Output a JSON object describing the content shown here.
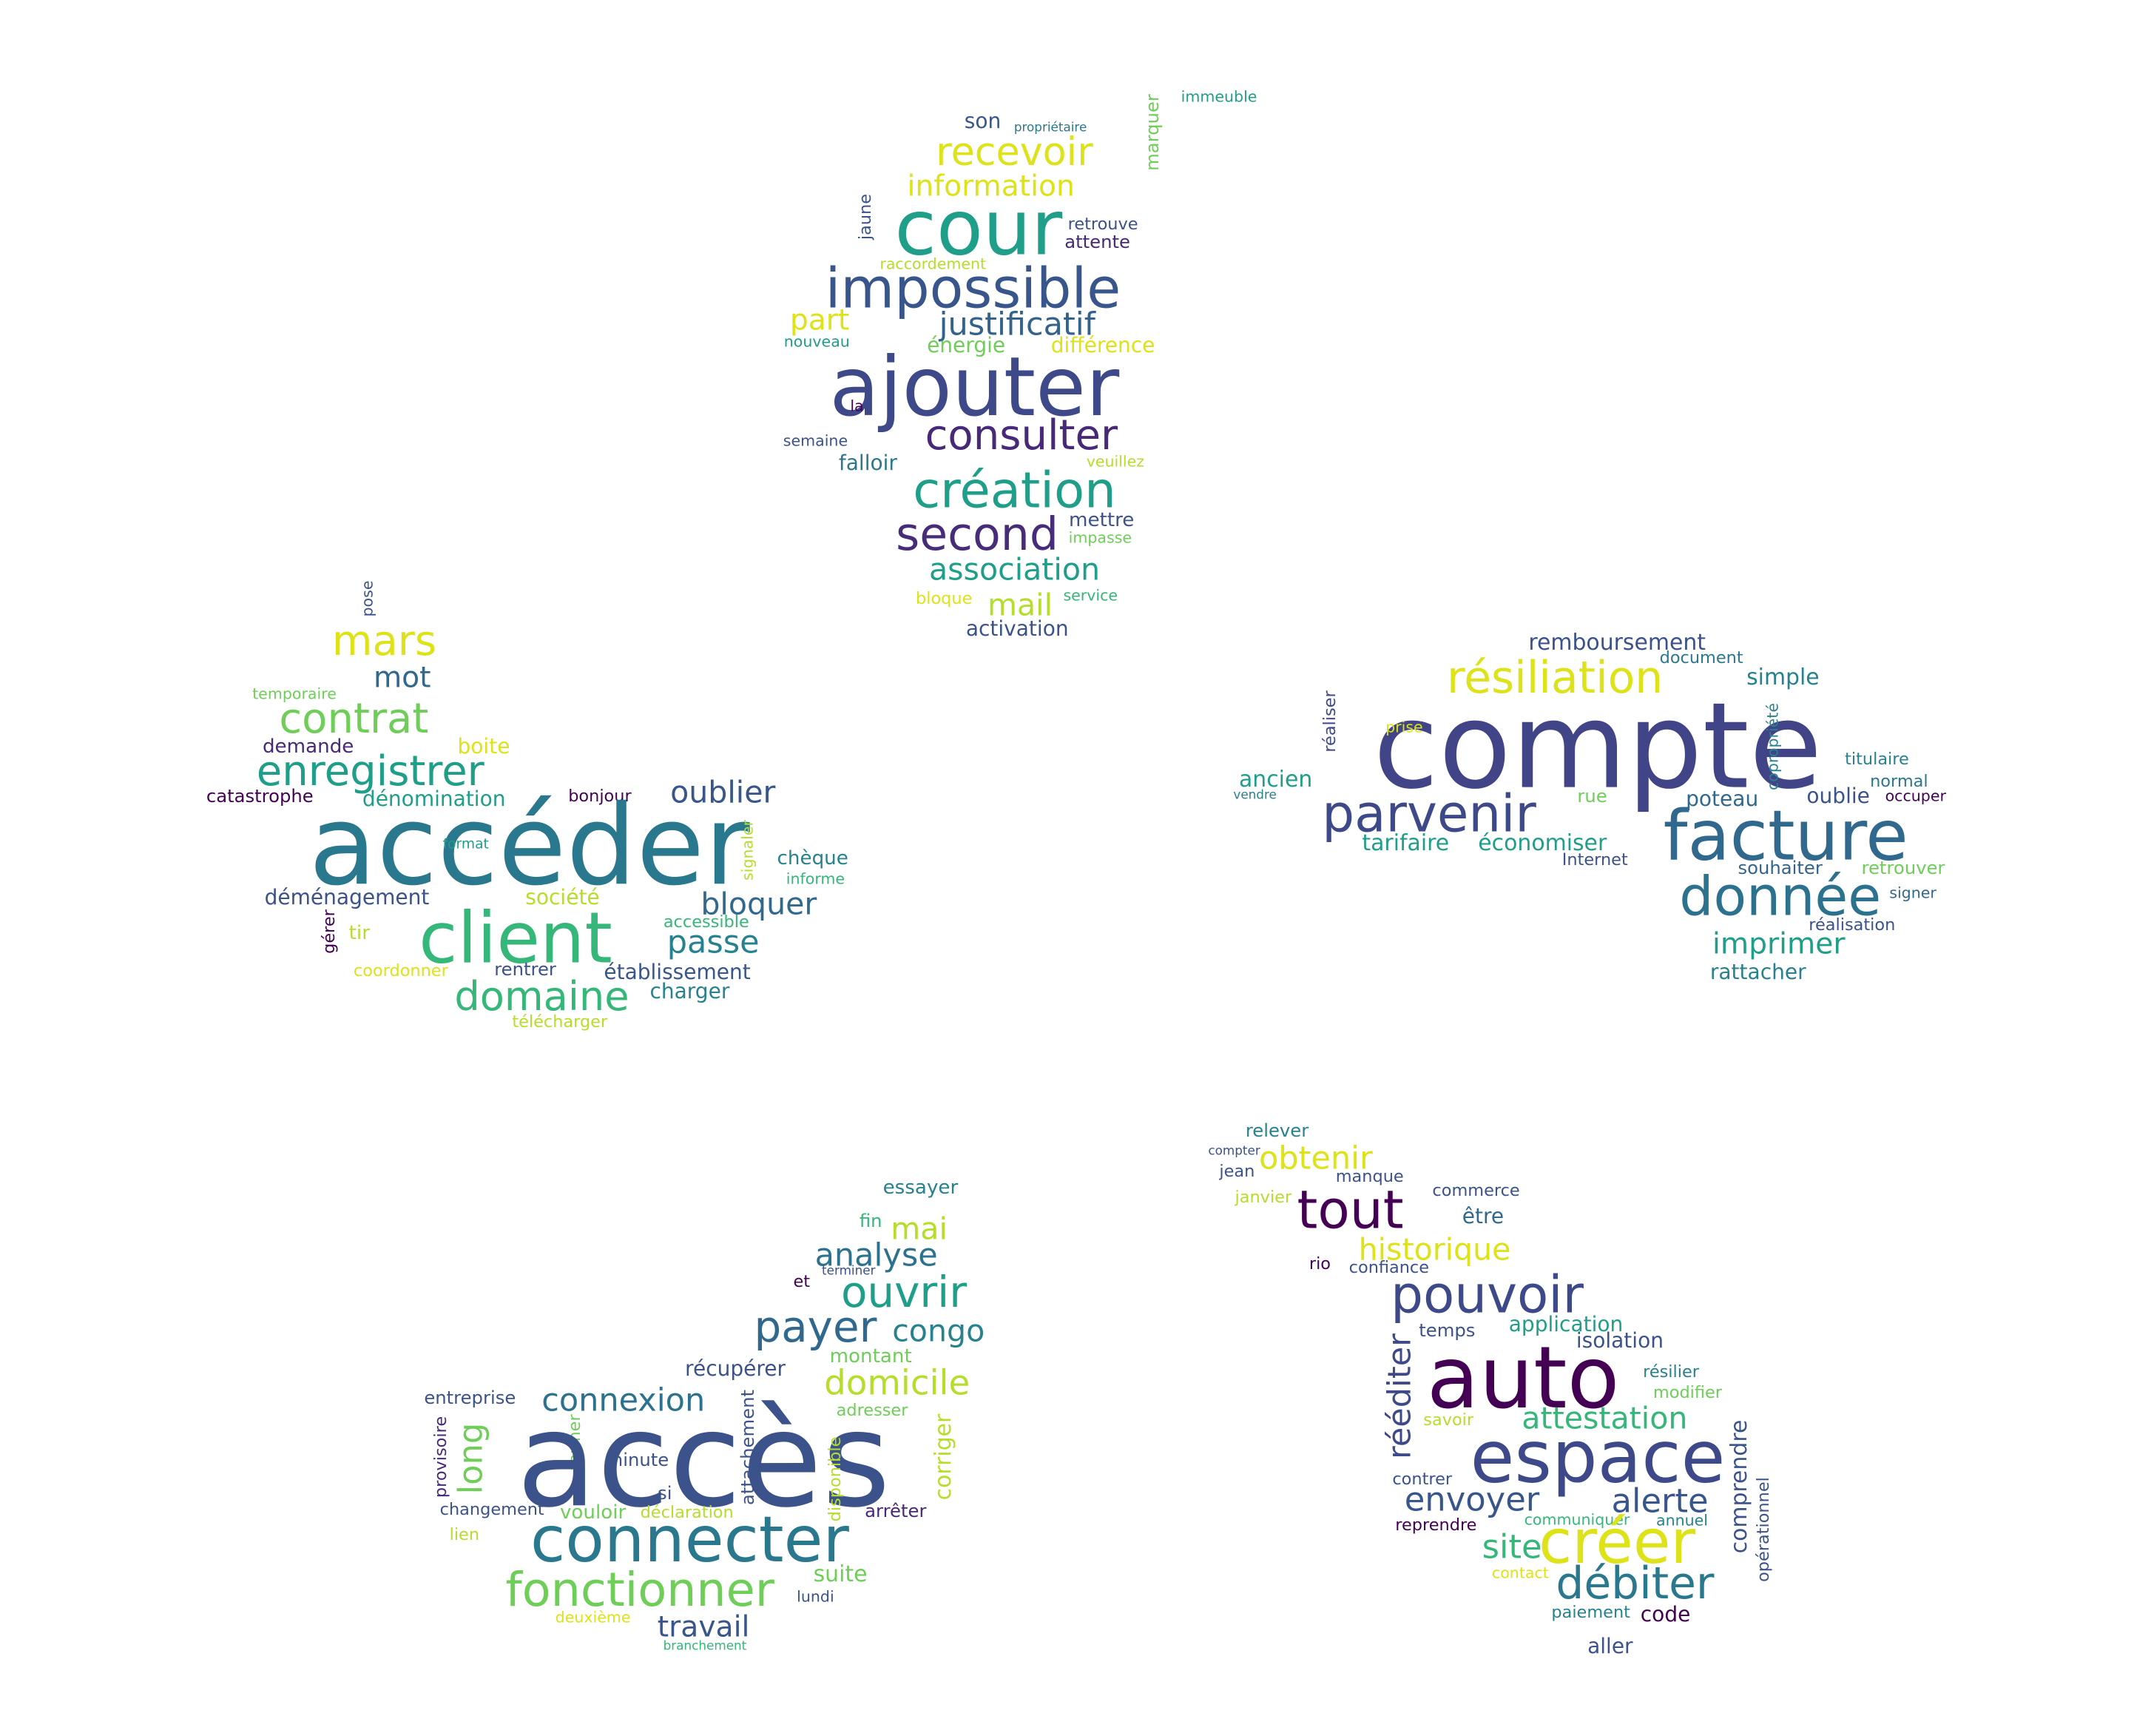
{
  "clouds": [
    {
      "name": "cloud-top",
      "words": [
        {
          "text": "immeuble",
          "color": "#1f9e89"
        },
        {
          "text": "son",
          "color": "#39568c"
        },
        {
          "text": "propriétaire",
          "color": "#2a788e"
        },
        {
          "text": "marquer",
          "color": "#6ece58"
        },
        {
          "text": "recevoir",
          "color": "#dde318"
        },
        {
          "text": "information",
          "color": "#dde318"
        },
        {
          "text": "cour",
          "color": "#1f9e89"
        },
        {
          "text": "jaune",
          "color": "#3b528b"
        },
        {
          "text": "retrouve",
          "color": "#3b528b"
        },
        {
          "text": "attente",
          "color": "#482878"
        },
        {
          "text": "raccordement",
          "color": "#b5de2b"
        },
        {
          "text": "impossible",
          "color": "#39568c"
        },
        {
          "text": "part",
          "color": "#dde318"
        },
        {
          "text": "justificatif",
          "color": "#33638d"
        },
        {
          "text": "nouveau",
          "color": "#1f9e89"
        },
        {
          "text": "énergie",
          "color": "#6ece58"
        },
        {
          "text": "différence",
          "color": "#dde318"
        },
        {
          "text": "ajouter",
          "color": "#3e4989"
        },
        {
          "text": "la",
          "color": "#440154"
        },
        {
          "text": "consulter",
          "color": "#482878"
        },
        {
          "text": "semaine",
          "color": "#3b528b"
        },
        {
          "text": "falloir",
          "color": "#2a788e"
        },
        {
          "text": "veuillez",
          "color": "#b5de2b"
        },
        {
          "text": "création",
          "color": "#1f9e89"
        },
        {
          "text": "mettre",
          "color": "#3b528b"
        },
        {
          "text": "second",
          "color": "#472c7a"
        },
        {
          "text": "impasse",
          "color": "#6ece58"
        },
        {
          "text": "association",
          "color": "#1f9e89"
        },
        {
          "text": "bloque",
          "color": "#dde318"
        },
        {
          "text": "mail",
          "color": "#b5de2b"
        },
        {
          "text": "service",
          "color": "#35b779"
        },
        {
          "text": "activation",
          "color": "#3b528b"
        }
      ]
    },
    {
      "name": "cloud-left",
      "words": [
        {
          "text": "pose",
          "color": "#3b528b"
        },
        {
          "text": "mars",
          "color": "#dde318"
        },
        {
          "text": "mot",
          "color": "#31688e"
        },
        {
          "text": "temporaire",
          "color": "#6ece58"
        },
        {
          "text": "contrat",
          "color": "#6ece58"
        },
        {
          "text": "demande",
          "color": "#482878"
        },
        {
          "text": "boite",
          "color": "#dde318"
        },
        {
          "text": "enregistrer",
          "color": "#1f9e89"
        },
        {
          "text": "catastrophe",
          "color": "#440154"
        },
        {
          "text": "dénomination",
          "color": "#1f9e89"
        },
        {
          "text": "bonjour",
          "color": "#440154"
        },
        {
          "text": "oublier",
          "color": "#39568c"
        },
        {
          "text": "accéder",
          "color": "#2a788e"
        },
        {
          "text": "format",
          "color": "#1f9e89"
        },
        {
          "text": "signaler",
          "color": "#b5de2b"
        },
        {
          "text": "chèque",
          "color": "#26828e"
        },
        {
          "text": "informe",
          "color": "#35b779"
        },
        {
          "text": "déménagement",
          "color": "#3b528b"
        },
        {
          "text": "société",
          "color": "#b5de2b"
        },
        {
          "text": "bloquer",
          "color": "#31688e"
        },
        {
          "text": "client",
          "color": "#35b779"
        },
        {
          "text": "gérer",
          "color": "#440154"
        },
        {
          "text": "tir",
          "color": "#b5de2b"
        },
        {
          "text": "accessible",
          "color": "#35b779"
        },
        {
          "text": "passe",
          "color": "#26828e"
        },
        {
          "text": "coordonner",
          "color": "#dde318"
        },
        {
          "text": "rentrer",
          "color": "#3b528b"
        },
        {
          "text": "établissement",
          "color": "#39568c"
        },
        {
          "text": "domaine",
          "color": "#35b779"
        },
        {
          "text": "charger",
          "color": "#26828e"
        },
        {
          "text": "télécharger",
          "color": "#b5de2b"
        }
      ]
    },
    {
      "name": "cloud-right",
      "words": [
        {
          "text": "remboursement",
          "color": "#3b528b"
        },
        {
          "text": "document",
          "color": "#2a788e"
        },
        {
          "text": "résiliation",
          "color": "#dde318"
        },
        {
          "text": "simple",
          "color": "#26828e"
        },
        {
          "text": "réaliser",
          "color": "#3e4989"
        },
        {
          "text": "compte",
          "color": "#414487"
        },
        {
          "text": "prise",
          "color": "#dde318"
        },
        {
          "text": "copropriété",
          "color": "#26828e"
        },
        {
          "text": "titulaire",
          "color": "#26828e"
        },
        {
          "text": "ancien",
          "color": "#1f9e89"
        },
        {
          "text": "vendre",
          "color": "#26828e"
        },
        {
          "text": "parvenir",
          "color": "#3e4989"
        },
        {
          "text": "rue",
          "color": "#6ece58"
        },
        {
          "text": "poteau",
          "color": "#31688e"
        },
        {
          "text": "oublie",
          "color": "#3b528b"
        },
        {
          "text": "normal",
          "color": "#2a788e"
        },
        {
          "text": "occuper",
          "color": "#440154"
        },
        {
          "text": "facture",
          "color": "#31688e"
        },
        {
          "text": "tarifaire",
          "color": "#1f9e89"
        },
        {
          "text": "économiser",
          "color": "#1f9e89"
        },
        {
          "text": "Internet",
          "color": "#3b528b"
        },
        {
          "text": "souhaiter",
          "color": "#33638d"
        },
        {
          "text": "retrouver",
          "color": "#6ece58"
        },
        {
          "text": "donnée",
          "color": "#2c728e"
        },
        {
          "text": "signer",
          "color": "#31688e"
        },
        {
          "text": "réalisation",
          "color": "#3b528b"
        },
        {
          "text": "imprimer",
          "color": "#1f9e89"
        },
        {
          "text": "rattacher",
          "color": "#26828e"
        }
      ]
    },
    {
      "name": "cloud-bottom-left",
      "words": [
        {
          "text": "essayer",
          "color": "#26828e"
        },
        {
          "text": "fin",
          "color": "#35b779"
        },
        {
          "text": "mai",
          "color": "#b5de2b"
        },
        {
          "text": "analyse",
          "color": "#2c728e"
        },
        {
          "text": "terminer",
          "color": "#3b528b"
        },
        {
          "text": "et",
          "color": "#440154"
        },
        {
          "text": "ouvrir",
          "color": "#1f9e89"
        },
        {
          "text": "payer",
          "color": "#31688e"
        },
        {
          "text": "congo",
          "color": "#26828e"
        },
        {
          "text": "montant",
          "color": "#6ece58"
        },
        {
          "text": "récupérer",
          "color": "#3b528b"
        },
        {
          "text": "domicile",
          "color": "#b5de2b"
        },
        {
          "text": "entreprise",
          "color": "#3b528b"
        },
        {
          "text": "connexion",
          "color": "#2c728e"
        },
        {
          "text": "adresser",
          "color": "#6ece58"
        },
        {
          "text": "long",
          "color": "#6ece58"
        },
        {
          "text": "fermer",
          "color": "#6ece58"
        },
        {
          "text": "attachement",
          "color": "#3b528b"
        },
        {
          "text": "corriger",
          "color": "#b5de2b"
        },
        {
          "text": "provisoire",
          "color": "#482878"
        },
        {
          "text": "accès",
          "color": "#3b528b"
        },
        {
          "text": "minute",
          "color": "#3b528b"
        },
        {
          "text": "disponible",
          "color": "#b5de2b"
        },
        {
          "text": "si",
          "color": "#3b528b"
        },
        {
          "text": "changement",
          "color": "#3b528b"
        },
        {
          "text": "vouloir",
          "color": "#6ece58"
        },
        {
          "text": "déclaration",
          "color": "#b5de2b"
        },
        {
          "text": "arrêter",
          "color": "#482878"
        },
        {
          "text": "connecter",
          "color": "#2a788e"
        },
        {
          "text": "lien",
          "color": "#b5de2b"
        },
        {
          "text": "suite",
          "color": "#6ece58"
        },
        {
          "text": "fonctionner",
          "color": "#6ece58"
        },
        {
          "text": "lundi",
          "color": "#3b528b"
        },
        {
          "text": "deuxième",
          "color": "#dde318"
        },
        {
          "text": "travail",
          "color": "#39568c"
        },
        {
          "text": "branchement",
          "color": "#35b779"
        }
      ]
    },
    {
      "name": "cloud-bottom-right",
      "words": [
        {
          "text": "relever",
          "color": "#26828e"
        },
        {
          "text": "compter",
          "color": "#3b528b"
        },
        {
          "text": "obtenir",
          "color": "#dde318"
        },
        {
          "text": "jean",
          "color": "#3b528b"
        },
        {
          "text": "manque",
          "color": "#3b528b"
        },
        {
          "text": "janvier",
          "color": "#b5de2b"
        },
        {
          "text": "commerce",
          "color": "#3b528b"
        },
        {
          "text": "tout",
          "color": "#440154"
        },
        {
          "text": "être",
          "color": "#31688e"
        },
        {
          "text": "historique",
          "color": "#dde318"
        },
        {
          "text": "rio",
          "color": "#440154"
        },
        {
          "text": "confiance",
          "color": "#3b528b"
        },
        {
          "text": "pouvoir",
          "color": "#3e4989"
        },
        {
          "text": "rééditer",
          "color": "#3e4989"
        },
        {
          "text": "temps",
          "color": "#3b528b"
        },
        {
          "text": "application",
          "color": "#1f9e89"
        },
        {
          "text": "isolation",
          "color": "#3b528b"
        },
        {
          "text": "auto",
          "color": "#440154"
        },
        {
          "text": "résilier",
          "color": "#26828e"
        },
        {
          "text": "modifier",
          "color": "#6ece58"
        },
        {
          "text": "savoir",
          "color": "#b5de2b"
        },
        {
          "text": "attestation",
          "color": "#35b779"
        },
        {
          "text": "comprendre",
          "color": "#3b528b"
        },
        {
          "text": "espace",
          "color": "#3e4989"
        },
        {
          "text": "contrer",
          "color": "#3b528b"
        },
        {
          "text": "envoyer",
          "color": "#39568c"
        },
        {
          "text": "alerte",
          "color": "#39568c"
        },
        {
          "text": "opérationnel",
          "color": "#3b528b"
        },
        {
          "text": "reprendre",
          "color": "#440154"
        },
        {
          "text": "communiquer",
          "color": "#35b779"
        },
        {
          "text": "annuel",
          "color": "#26828e"
        },
        {
          "text": "site",
          "color": "#35b779"
        },
        {
          "text": "créer",
          "color": "#dde318"
        },
        {
          "text": "contact",
          "color": "#dde318"
        },
        {
          "text": "débiter",
          "color": "#2a788e"
        },
        {
          "text": "paiement",
          "color": "#26828e"
        },
        {
          "text": "code",
          "color": "#440154"
        },
        {
          "text": "aller",
          "color": "#3b528b"
        }
      ]
    }
  ]
}
